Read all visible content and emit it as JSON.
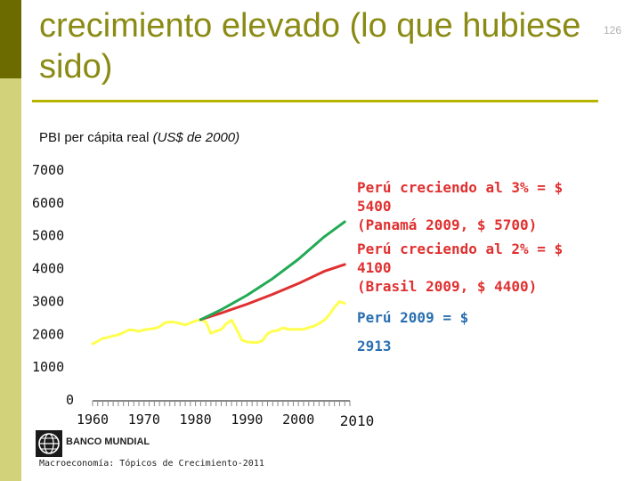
{
  "slide": {
    "title": "crecimiento elevado (lo que hubiese sido)",
    "page_number": "126",
    "subtitle": "PBI per cápita real",
    "subtitle_unit": "(US$ de 2000)",
    "logo_text": "BANCO MUNDIAL",
    "footer": "Macroeconomía: Tópicos de Crecimiento-2011",
    "colors": {
      "accent": "#b6b600",
      "sidebar_dark": "#6b6b00",
      "sidebar_light": "#d2d27a"
    }
  },
  "annotations": {
    "green": [
      "Perú creciendo al 3% = $",
      "5400",
      "(Panamá 2009, $ 5700)"
    ],
    "red": [
      "Perú creciendo al 2% = $",
      "4100",
      "(Brasil 2009, $ 4400)"
    ],
    "yellow": [
      "Perú 2009 = $",
      "",
      "2913"
    ]
  },
  "chart_data": {
    "type": "line",
    "title": "PBI per cápita real (US$ de 2000)",
    "xlabel": "",
    "ylabel": "",
    "xlim": [
      1960,
      2010
    ],
    "ylim": [
      0,
      7000
    ],
    "yticks": [
      0,
      1000,
      2000,
      3000,
      4000,
      5000,
      6000,
      7000
    ],
    "xticks": [
      1960,
      1970,
      1980,
      1990,
      2000,
      2010
    ],
    "grid": false,
    "series": [
      {
        "color": "#ffff50",
        "x": [
          1960,
          1961,
          1962,
          1963,
          1964,
          1965,
          1966,
          1967,
          1968,
          1969,
          1970,
          1971,
          1972,
          1973,
          1974,
          1975,
          1976,
          1977,
          1978,
          1979,
          1980,
          1981,
          1982,
          1983,
          1984,
          1985,
          1986,
          1987,
          1988,
          1989,
          1990,
          1991,
          1992,
          1993,
          1994,
          1995,
          1996,
          1997,
          1998,
          1999,
          2000,
          2001,
          2002,
          2003,
          2004,
          2005,
          2006,
          2007,
          2008,
          2009
        ],
        "values": [
          1680,
          1760,
          1850,
          1880,
          1920,
          1960,
          2020,
          2110,
          2100,
          2060,
          2110,
          2130,
          2150,
          2200,
          2320,
          2350,
          2340,
          2300,
          2260,
          2320,
          2380,
          2420,
          2350,
          2000,
          2070,
          2120,
          2300,
          2400,
          2120,
          1800,
          1740,
          1730,
          1720,
          1780,
          1990,
          2070,
          2090,
          2170,
          2130,
          2120,
          2130,
          2120,
          2180,
          2220,
          2300,
          2400,
          2560,
          2800,
          2970,
          2913
        ]
      },
      {
        "color": "#e03030",
        "x": [
          1981,
          1985,
          1990,
          1995,
          2000,
          2005,
          2009
        ],
        "values": [
          2420,
          2620,
          2890,
          3190,
          3520,
          3890,
          4100
        ]
      },
      {
        "color": "#22aa55",
        "x": [
          1981,
          1985,
          1990,
          1995,
          2000,
          2005,
          2009
        ],
        "values": [
          2420,
          2720,
          3160,
          3670,
          4260,
          4940,
          5400
        ]
      }
    ]
  }
}
